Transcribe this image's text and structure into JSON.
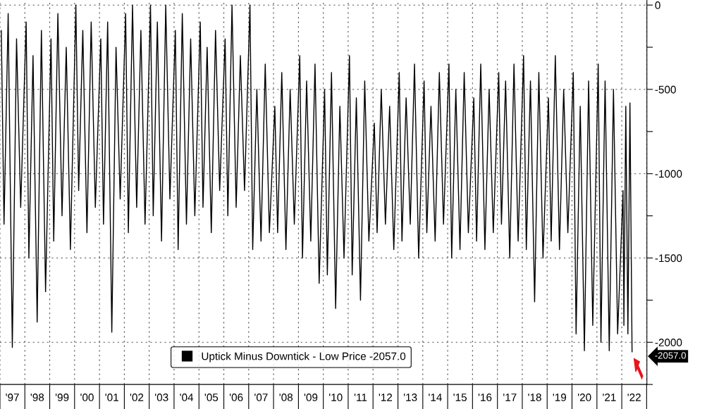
{
  "chart_data": {
    "type": "line",
    "series": [
      {
        "name": "Uptick Minus Downtick - Low Price -2057.0",
        "color": "#000000",
        "x": [
          "1997-01-20",
          "1997-03",
          "1997-05",
          "1997-07",
          "1997-09",
          "1997-11",
          "1998-01-20",
          "1998-03",
          "1998-05",
          "1998-07",
          "1998-09",
          "1998-11",
          "1999-01-20",
          "1999-03",
          "1999-05",
          "1999-07",
          "1999-09",
          "1999-11",
          "2000-01-20",
          "2000-03",
          "2000-05",
          "2000-07",
          "2000-09",
          "2000-11",
          "2001-01-20",
          "2001-03",
          "2001-05",
          "2001-07",
          "2001-09",
          "2001-11",
          "2002-01-20",
          "2002-03",
          "2002-05",
          "2002-07",
          "2002-09",
          "2002-11",
          "2003-01-20",
          "2003-03",
          "2003-05",
          "2003-07",
          "2003-09",
          "2003-11",
          "2004-01-20",
          "2004-03",
          "2004-05",
          "2004-07",
          "2004-09",
          "2004-11",
          "2005-01-20",
          "2005-03",
          "2005-05",
          "2005-07",
          "2005-09",
          "2005-11",
          "2006-01-20",
          "2006-03",
          "2006-05",
          "2006-07",
          "2006-09",
          "2006-11",
          "2007-01-20",
          "2007-03",
          "2007-05",
          "2007-07",
          "2007-09",
          "2007-11",
          "2008-01-20",
          "2008-03",
          "2008-05",
          "2008-07",
          "2008-09",
          "2008-11",
          "2009-01-20",
          "2009-03",
          "2009-05",
          "2009-07",
          "2009-09",
          "2009-11",
          "2010-01-20",
          "2010-03",
          "2010-05",
          "2010-07",
          "2010-09",
          "2010-11",
          "2011-01-20",
          "2011-03",
          "2011-05",
          "2011-07",
          "2011-09",
          "2011-11",
          "2012-01-20",
          "2012-03",
          "2012-05",
          "2012-07",
          "2012-09",
          "2012-11",
          "2013-01-20",
          "2013-03",
          "2013-05",
          "2013-07",
          "2013-09",
          "2013-11",
          "2014-01-20",
          "2014-03",
          "2014-05",
          "2014-07",
          "2014-09",
          "2014-11",
          "2015-01-20",
          "2015-03",
          "2015-05",
          "2015-07",
          "2015-09",
          "2015-11",
          "2016-01-20",
          "2016-03",
          "2016-05",
          "2016-07",
          "2016-09",
          "2016-11",
          "2017-01-20",
          "2017-03",
          "2017-05",
          "2017-07",
          "2017-09",
          "2017-11",
          "2018-01-20",
          "2018-03",
          "2018-05",
          "2018-07",
          "2018-09",
          "2018-11",
          "2019-01-20",
          "2019-03",
          "2019-05",
          "2019-07",
          "2019-09",
          "2019-11",
          "2020-01-20",
          "2020-03",
          "2020-05",
          "2020-07",
          "2020-09",
          "2020-11",
          "2021-01-20",
          "2021-03",
          "2021-05",
          "2021-07",
          "2021-09",
          "2021-11",
          "2022-01-20",
          "2022-02",
          "2022-03",
          "2022-04",
          "2022-05",
          "2022-06-01"
        ],
        "values": [
          -150,
          -1300,
          -50,
          -2030,
          -200,
          -1200,
          -100,
          -1500,
          -300,
          -1880,
          -150,
          -1700,
          -200,
          -1400,
          -50,
          -1250,
          -250,
          -1450,
          0,
          -1100,
          -150,
          -1350,
          -100,
          -1200,
          -200,
          -1300,
          -100,
          -1940,
          -250,
          -1150,
          -50,
          -1350,
          0,
          -1200,
          -150,
          -1300,
          0,
          -1250,
          -100,
          -1400,
          0,
          -1150,
          -150,
          -1450,
          -50,
          -1300,
          -200,
          -1250,
          -100,
          -1200,
          -250,
          -1350,
          -150,
          -1100,
          -200,
          -1250,
          0,
          -1200,
          -300,
          -1100,
          0,
          -1450,
          -500,
          -1400,
          -350,
          -1350,
          -600,
          -1350,
          -400,
          -1450,
          -500,
          -1300,
          -300,
          -1500,
          -450,
          -1400,
          -350,
          -1650,
          -500,
          -1600,
          -400,
          -1800,
          -600,
          -1500,
          -300,
          -1600,
          -550,
          -1750,
          -450,
          -1400,
          -700,
          -1350,
          -500,
          -1300,
          -600,
          -1450,
          -400,
          -1400,
          -550,
          -1300,
          -350,
          -1500,
          -450,
          -1350,
          -600,
          -1400,
          -400,
          -1300,
          -350,
          -1500,
          -500,
          -1450,
          -400,
          -1350,
          -550,
          -1400,
          -350,
          -1450,
          -500,
          -1350,
          -400,
          -1300,
          -450,
          -1500,
          -350,
          -1400,
          -300,
          -1450,
          -450,
          -1760,
          -400,
          -1500,
          -550,
          -1400,
          -300,
          -1450,
          -500,
          -1350,
          -400,
          -1950,
          -600,
          -2050,
          -450,
          -1900,
          -350,
          -2000,
          -450,
          -2050,
          -500,
          -1950,
          -1100,
          -1900,
          -600,
          -1950,
          -580,
          -2057
        ]
      }
    ],
    "xlim": [
      "1997-01-01",
      "2023-01-05"
    ],
    "ylim": [
      -2250,
      30
    ],
    "yticks": [
      0,
      {
        "value": -250,
        "label": null
      },
      -500,
      {
        "value": -750,
        "label": null
      },
      -1000,
      {
        "value": -1250,
        "label": null
      },
      -1500,
      {
        "value": -1750,
        "label": null
      },
      -2000,
      {
        "value": -2250,
        "label": null
      }
    ],
    "xticks": [
      {
        "value": "1997-01-01",
        "label": null
      },
      {
        "value": "1997-07-02",
        "label": "'97"
      },
      {
        "value": "1998-01-01",
        "label": null
      },
      {
        "value": "1998-07-02",
        "label": "'98"
      },
      {
        "value": "1999-01-01",
        "label": null
      },
      {
        "value": "1999-07-02",
        "label": "'99"
      },
      {
        "value": "2000-01-01",
        "label": null
      },
      {
        "value": "2000-07-02",
        "label": "'00"
      },
      {
        "value": "2001-01-01",
        "label": null
      },
      {
        "value": "2001-07-02",
        "label": "'01"
      },
      {
        "value": "2002-01-01",
        "label": null
      },
      {
        "value": "2002-07-02",
        "label": "'02"
      },
      {
        "value": "2003-01-01",
        "label": null
      },
      {
        "value": "2003-07-02",
        "label": "'03"
      },
      {
        "value": "2004-01-01",
        "label": null
      },
      {
        "value": "2004-07-02",
        "label": "'04"
      },
      {
        "value": "2005-01-01",
        "label": null
      },
      {
        "value": "2005-07-02",
        "label": "'05"
      },
      {
        "value": "2006-01-01",
        "label": null
      },
      {
        "value": "2006-07-02",
        "label": "'06"
      },
      {
        "value": "2007-01-01",
        "label": null
      },
      {
        "value": "2007-07-02",
        "label": "'07"
      },
      {
        "value": "2008-01-01",
        "label": null
      },
      {
        "value": "2008-07-02",
        "label": "'08"
      },
      {
        "value": "2009-01-01",
        "label": null
      },
      {
        "value": "2009-07-02",
        "label": "'09"
      },
      {
        "value": "2010-01-01",
        "label": null
      },
      {
        "value": "2010-07-02",
        "label": "'10"
      },
      {
        "value": "2011-01-01",
        "label": null
      },
      {
        "value": "2011-07-02",
        "label": "'11"
      },
      {
        "value": "2012-01-01",
        "label": null
      },
      {
        "value": "2012-07-02",
        "label": "'12"
      },
      {
        "value": "2013-01-01",
        "label": null
      },
      {
        "value": "2013-07-02",
        "label": "'13"
      },
      {
        "value": "2014-01-01",
        "label": null
      },
      {
        "value": "2014-07-02",
        "label": "'14"
      },
      {
        "value": "2015-01-01",
        "label": null
      },
      {
        "value": "2015-07-02",
        "label": "'15"
      },
      {
        "value": "2016-01-01",
        "label": null
      },
      {
        "value": "2016-07-02",
        "label": "'16"
      },
      {
        "value": "2017-01-01",
        "label": null
      },
      {
        "value": "2017-07-02",
        "label": "'17"
      },
      {
        "value": "2018-01-01",
        "label": null
      },
      {
        "value": "2018-07-02",
        "label": "'18"
      },
      {
        "value": "2019-01-01",
        "label": null
      },
      {
        "value": "2019-07-02",
        "label": "'19"
      },
      {
        "value": "2020-01-01",
        "label": null
      },
      {
        "value": "2020-07-02",
        "label": "'20"
      },
      {
        "value": "2021-01-01",
        "label": null
      },
      {
        "value": "2021-07-02",
        "label": "'21"
      },
      {
        "value": "2022-01-01",
        "label": null
      },
      {
        "value": "2022-07-02",
        "label": "'22"
      },
      {
        "value": "2023-01-01",
        "label": null
      }
    ],
    "annotations": [
      {
        "text": "-2057.0",
        "x": "2022-06-01",
        "y": -2057
      }
    ],
    "grid": true,
    "legend": "bottom",
    "marker": "none",
    "line_style": "solid"
  }
}
